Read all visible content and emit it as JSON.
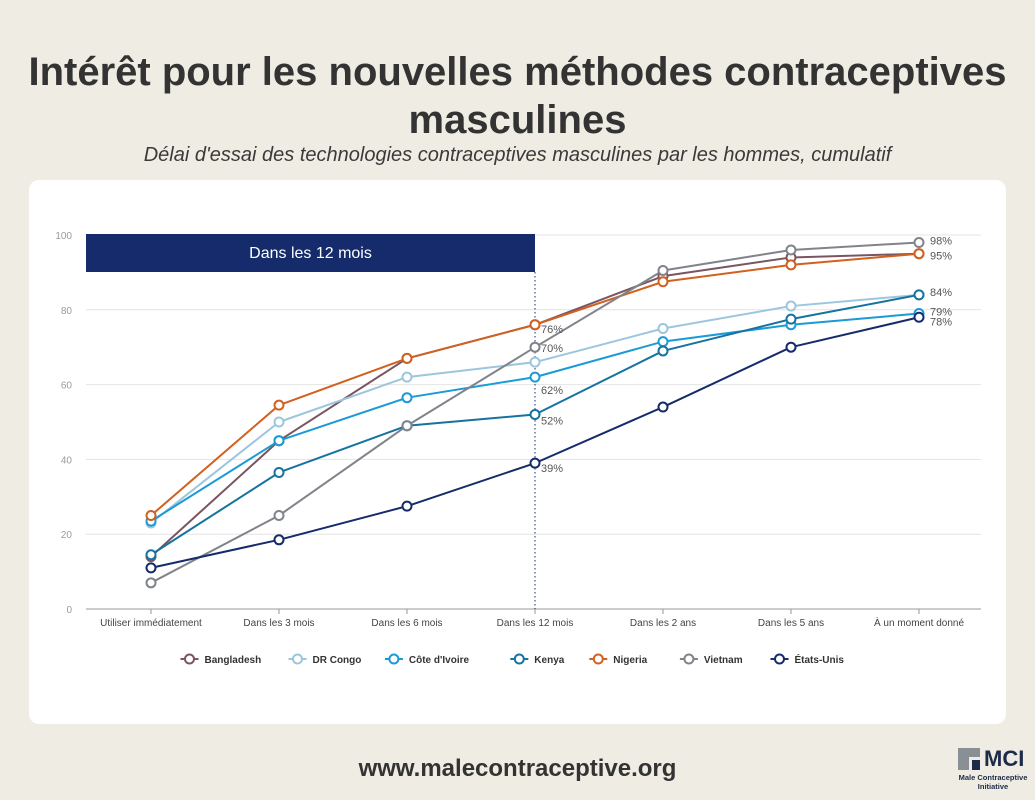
{
  "header": {
    "title_line1": "Intérêt pour les nouvelles méthodes contraceptives",
    "title_line2": "masculines",
    "subtitle": "Délai d'essai des technologies contraceptives masculines par les hommes, cumulatif"
  },
  "footer": {
    "url": "www.malecontraceptive.org",
    "logo_abbr": "MCI",
    "logo_name_line1": "Male Contraceptive",
    "logo_name_line2": "Initiative"
  },
  "chart_data": {
    "type": "line",
    "title": "Intérêt pour les nouvelles méthodes contraceptives masculines",
    "subtitle": "Délai d'essai des technologies contraceptives masculines par les hommes, cumulatif",
    "categories": [
      "Utiliser immédiatement",
      "Dans les 3 mois",
      "Dans les 6 mois",
      "Dans les 12 mois",
      "Dans les 2 ans",
      "Dans les 5 ans",
      "À un moment donné"
    ],
    "ylim": [
      0,
      100
    ],
    "yticks": [
      0,
      20,
      40,
      60,
      80,
      100
    ],
    "grid": true,
    "legend_position": "bottom",
    "annotation": {
      "label": "Dans les 12 mois",
      "from_category": "Utiliser immédiatement",
      "to_category": "Dans les 12 mois"
    },
    "series": [
      {
        "name": "Bangladesh",
        "color": "#7a5560",
        "values": [
          14,
          45,
          67,
          76,
          89,
          94,
          95
        ]
      },
      {
        "name": "DR Congo",
        "color": "#9cc6de",
        "values": [
          23,
          50,
          62,
          66,
          75,
          81,
          84
        ]
      },
      {
        "name": "Côte d'Ivoire",
        "color": "#1a9ad6",
        "values": [
          23.5,
          45,
          56.5,
          62,
          71.5,
          76,
          79
        ]
      },
      {
        "name": "Kenya",
        "color": "#1673a0",
        "values": [
          14.5,
          36.5,
          49,
          52,
          69,
          77.5,
          84
        ]
      },
      {
        "name": "Nigeria",
        "color": "#d2601f",
        "values": [
          25,
          54.5,
          67,
          76,
          87.5,
          92,
          95
        ]
      },
      {
        "name": "Vietnam",
        "color": "#80848a",
        "values": [
          7,
          25,
          49,
          70,
          90.5,
          96,
          98
        ]
      },
      {
        "name": "États-Unis",
        "color": "#152b6b",
        "values": [
          11,
          18.5,
          27.5,
          39,
          54,
          70,
          78
        ]
      }
    ],
    "data_labels": [
      {
        "series": "Nigeria",
        "category": "Dans les 12 mois",
        "text": "76%"
      },
      {
        "series": "Vietnam",
        "category": "Dans les 12 mois",
        "text": "70%"
      },
      {
        "series": "Côte d'Ivoire",
        "category": "Dans les 12 mois",
        "text": "62%"
      },
      {
        "series": "Kenya",
        "category": "Dans les 12 mois",
        "text": "52%"
      },
      {
        "series": "États-Unis",
        "category": "Dans les 12 mois",
        "text": "39%"
      },
      {
        "series": "Vietnam",
        "category": "À un moment donné",
        "text": "98%"
      },
      {
        "series": "Nigeria",
        "category": "À un moment donné",
        "text": "95%"
      },
      {
        "series": "Kenya",
        "category": "À un moment donné",
        "text": "84%"
      },
      {
        "series": "Côte d'Ivoire",
        "category": "À un moment donné",
        "text": "79%"
      },
      {
        "series": "États-Unis",
        "category": "À un moment donné",
        "text": "78%"
      }
    ]
  }
}
